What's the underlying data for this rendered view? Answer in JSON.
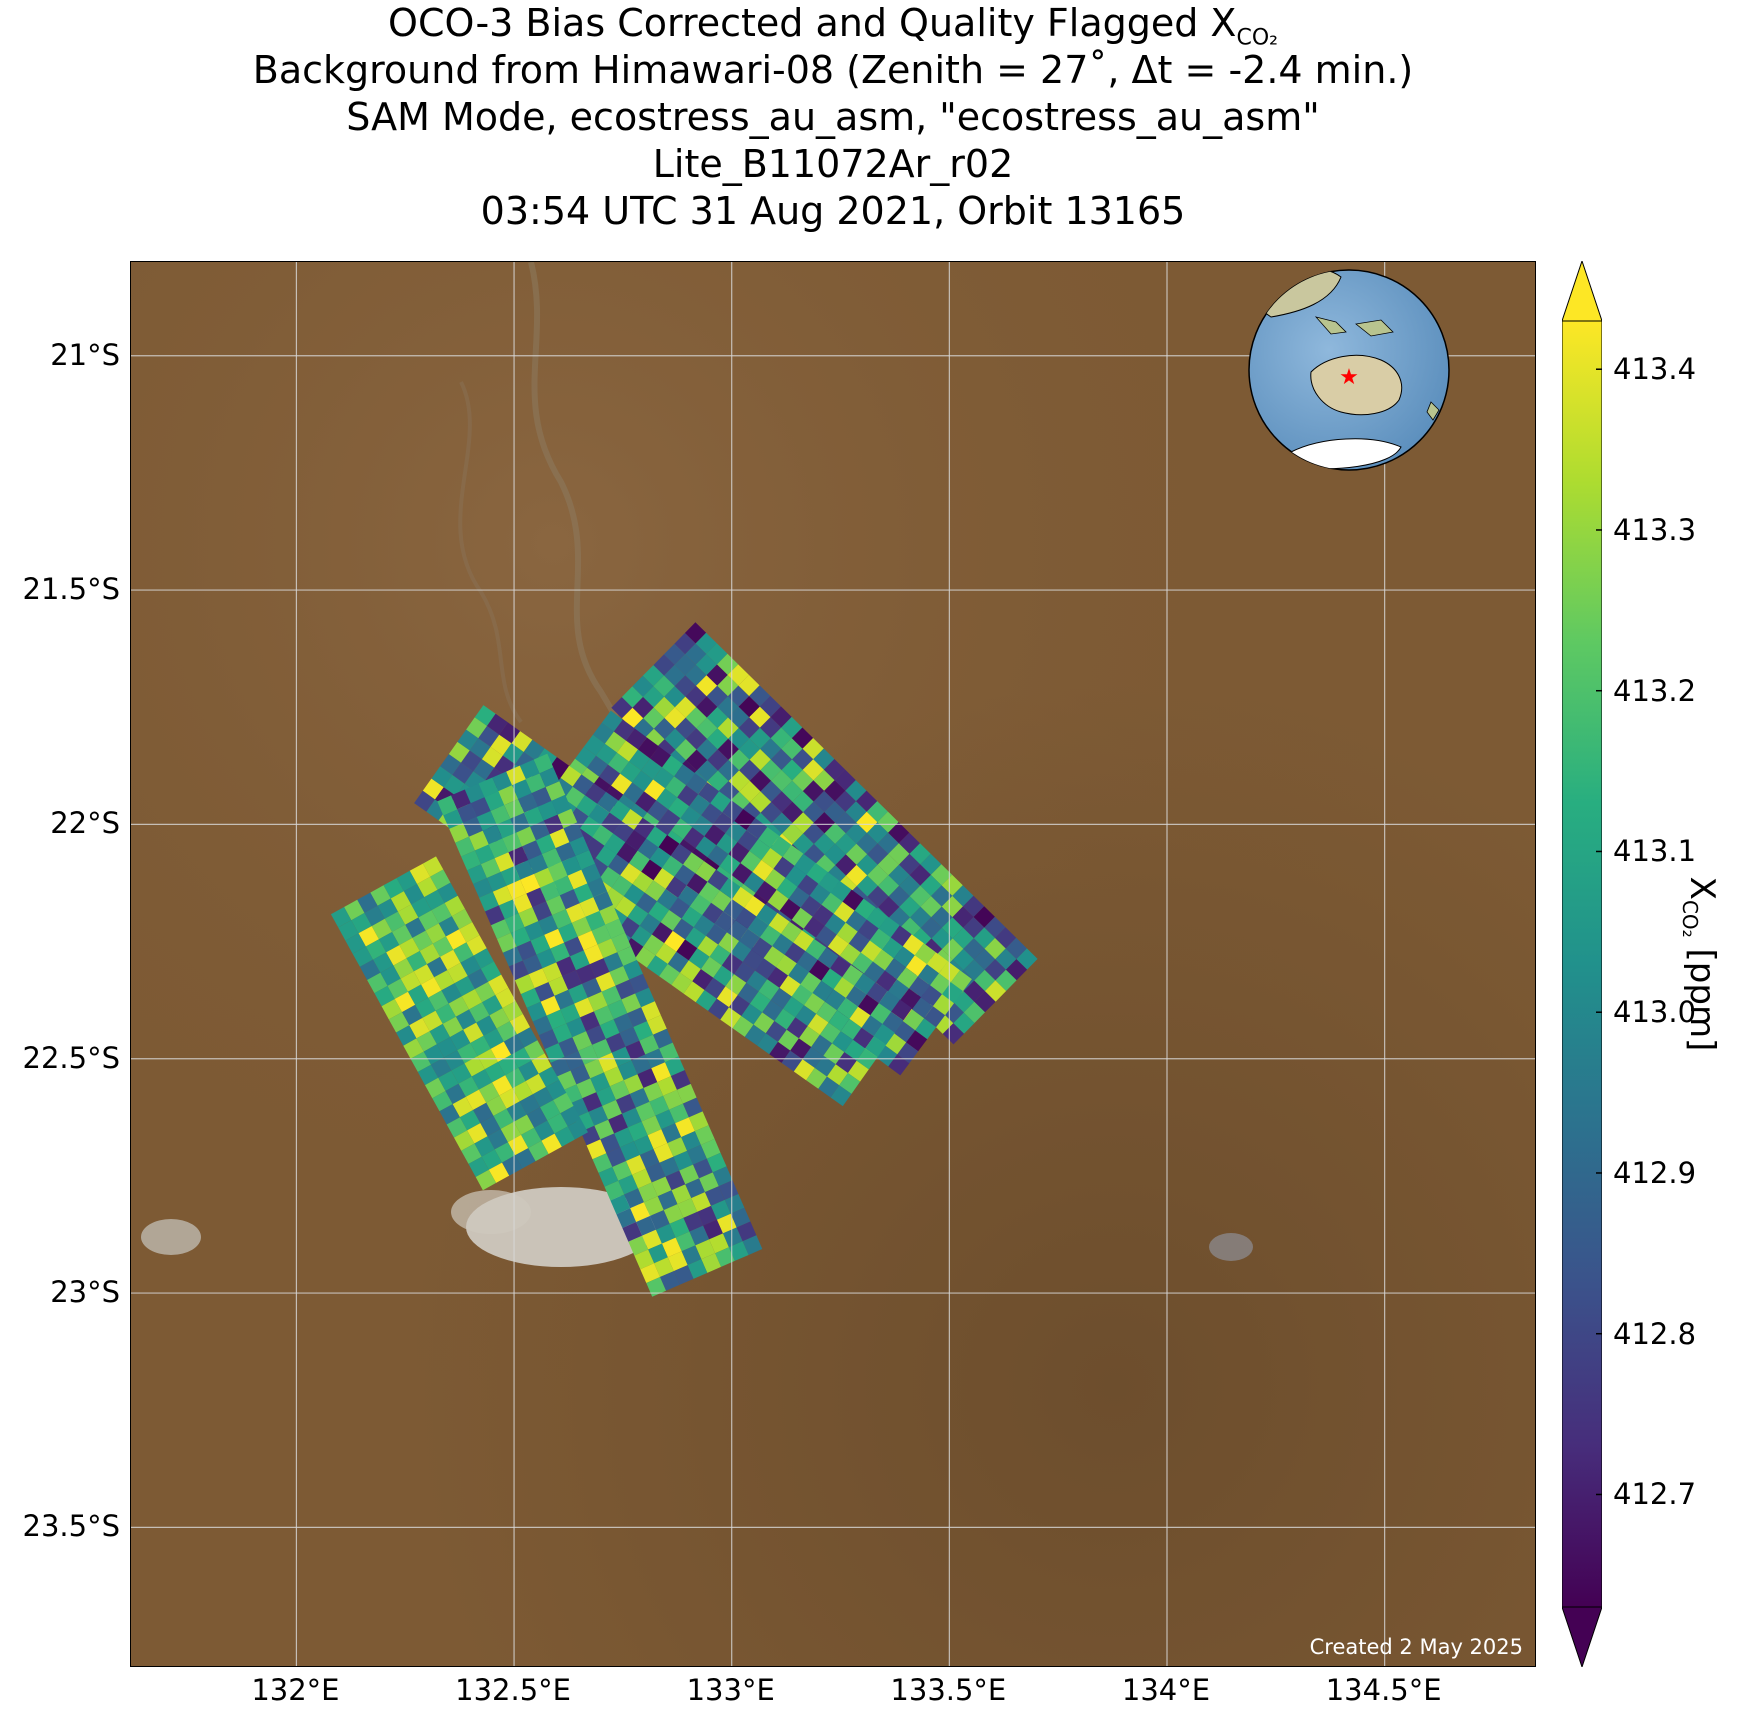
{
  "title": {
    "line1_text": "OCO-3 Bias Corrected and Quality Flagged X",
    "line1_subscript": "CO₂",
    "line2": "Background from Himawari-08 (Zenith = 27˚, Δt = -2.4 min.)",
    "line3": "SAM Mode, ecostress_au_asm, \"ecostress_au_asm\"",
    "line4": "Lite_B11072Ar_r02",
    "line5": "03:54 UTC 31 Aug 2021, Orbit 13165"
  },
  "map": {
    "lon_range": [
      131.62,
      134.85
    ],
    "lat_range": [
      -23.8,
      -20.8
    ],
    "x_ticks": [
      {
        "value": 132.0,
        "label": "132°E"
      },
      {
        "value": 132.5,
        "label": "132.5°E"
      },
      {
        "value": 133.0,
        "label": "133°E"
      },
      {
        "value": 133.5,
        "label": "133.5°E"
      },
      {
        "value": 134.0,
        "label": "134°E"
      },
      {
        "value": 134.5,
        "label": "134.5°E"
      }
    ],
    "y_ticks": [
      {
        "value": -21.0,
        "label": "21°S"
      },
      {
        "value": -21.5,
        "label": "21.5°S"
      },
      {
        "value": -22.0,
        "label": "22°S"
      },
      {
        "value": -22.5,
        "label": "22.5°S"
      },
      {
        "value": -23.0,
        "label": "23°S"
      },
      {
        "value": -23.5,
        "label": "23.5°S"
      }
    ],
    "gridlines": true,
    "background_color": "#7d5a34",
    "inset_globe": "globe centered on Australia with red star marking target",
    "footer_text": "Created 2 May 2025"
  },
  "colorbar": {
    "cmap": "viridis",
    "range": [
      412.63,
      413.43
    ],
    "extend": "both",
    "ticks": [
      "413.4",
      "413.3",
      "413.2",
      "413.1",
      "413.0",
      "412.9",
      "412.8",
      "412.7"
    ],
    "tick_values": [
      413.4,
      413.3,
      413.2,
      413.1,
      413.0,
      412.9,
      412.8,
      412.7
    ],
    "label_text": "X",
    "label_subscript": "CO₂",
    "label_unit": " [ppm]"
  },
  "chart_data": {
    "type": "heatmap",
    "description_of_swaths": "OCO-3 SAM swath footprints of XCO2 over central Australia",
    "swaths": [
      {
        "lon_start": 132.82,
        "lat_start": -21.66,
        "lon_end": 133.63,
        "lat_end": -22.4
      },
      {
        "lon_start": 132.64,
        "lat_start": -21.86,
        "lon_end": 133.48,
        "lat_end": -22.44
      },
      {
        "lon_start": 132.35,
        "lat_start": -21.85,
        "lon_end": 133.34,
        "lat_end": -22.5
      },
      {
        "lon_start": 132.45,
        "lat_start": -21.9,
        "lon_end": 132.95,
        "lat_end": -22.97
      },
      {
        "lon_start": 132.2,
        "lat_start": -22.13,
        "lon_end": 132.55,
        "lat_end": -22.72
      }
    ],
    "value_range_ppm": [
      412.63,
      413.43
    ]
  }
}
